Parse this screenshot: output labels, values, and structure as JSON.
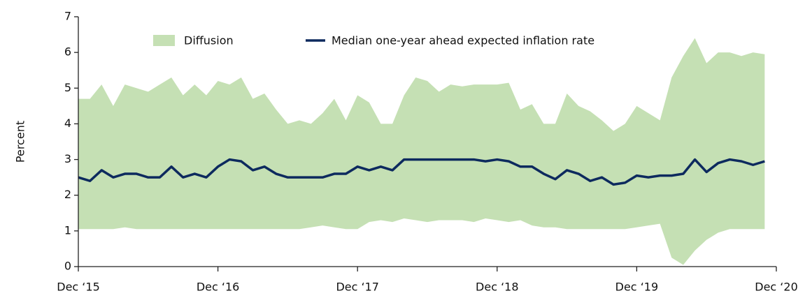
{
  "chart_data": {
    "type": "band-line",
    "ylabel": "Percent",
    "categories": [
      "Dec ‘15",
      null,
      null,
      null,
      null,
      null,
      null,
      null,
      null,
      null,
      null,
      null,
      "Dec ‘16",
      null,
      null,
      null,
      null,
      null,
      null,
      null,
      null,
      null,
      null,
      null,
      "Dec ‘17",
      null,
      null,
      null,
      null,
      null,
      null,
      null,
      null,
      null,
      null,
      null,
      "Dec ‘18",
      null,
      null,
      null,
      null,
      null,
      null,
      null,
      null,
      null,
      null,
      null,
      "Dec ‘19",
      null,
      null,
      null,
      null,
      null,
      null,
      null,
      null,
      null,
      null,
      null,
      "Dec ‘20"
    ],
    "series": [
      {
        "name": "Diffusion",
        "color": "#c5e0b4",
        "high": [
          4.7,
          4.7,
          5.1,
          4.5,
          5.1,
          5.0,
          4.9,
          5.1,
          5.3,
          4.8,
          5.1,
          4.8,
          5.2,
          5.1,
          5.3,
          4.7,
          4.85,
          4.4,
          4.0,
          4.1,
          4.0,
          4.3,
          4.7,
          4.1,
          4.8,
          4.6,
          4.0,
          4.0,
          4.8,
          5.3,
          5.2,
          4.9,
          5.1,
          5.05,
          5.1,
          5.1,
          5.1,
          5.15,
          4.4,
          4.55,
          4.0,
          4.0,
          4.85,
          4.5,
          4.35,
          4.1,
          3.8,
          4.0,
          4.5,
          4.3,
          4.1,
          5.3,
          5.9,
          6.4,
          5.7,
          6.0,
          6.0,
          5.9,
          6.0,
          5.95,
          null
        ],
        "low": [
          1.05,
          1.05,
          1.05,
          1.05,
          1.1,
          1.05,
          1.05,
          1.05,
          1.05,
          1.05,
          1.05,
          1.05,
          1.05,
          1.05,
          1.05,
          1.05,
          1.05,
          1.05,
          1.05,
          1.05,
          1.1,
          1.15,
          1.1,
          1.05,
          1.05,
          1.25,
          1.3,
          1.25,
          1.35,
          1.3,
          1.25,
          1.3,
          1.3,
          1.3,
          1.25,
          1.35,
          1.3,
          1.25,
          1.3,
          1.15,
          1.1,
          1.1,
          1.05,
          1.05,
          1.05,
          1.05,
          1.05,
          1.05,
          1.1,
          1.15,
          1.2,
          0.25,
          0.05,
          0.45,
          0.75,
          0.95,
          1.05,
          1.05,
          1.05,
          1.05,
          null
        ]
      },
      {
        "name": "Median one-year ahead expected inflation rate",
        "color": "#0d2a5e",
        "values": [
          2.5,
          2.4,
          2.7,
          2.5,
          2.6,
          2.6,
          2.5,
          2.5,
          2.8,
          2.5,
          2.6,
          2.5,
          2.8,
          3.0,
          2.95,
          2.7,
          2.8,
          2.6,
          2.5,
          2.5,
          2.5,
          2.5,
          2.6,
          2.6,
          2.8,
          2.7,
          2.8,
          2.7,
          3.0,
          3.0,
          3.0,
          3.0,
          3.0,
          3.0,
          3.0,
          2.95,
          3.0,
          2.95,
          2.8,
          2.8,
          2.6,
          2.45,
          2.7,
          2.6,
          2.4,
          2.5,
          2.3,
          2.35,
          2.55,
          2.5,
          2.55,
          2.55,
          2.6,
          3.0,
          2.65,
          2.9,
          3.0,
          2.95,
          2.85,
          2.95,
          null
        ]
      }
    ],
    "ylim": [
      0,
      7
    ],
    "yticks": [
      0,
      1,
      2,
      3,
      4,
      5,
      6,
      7
    ],
    "grid": false
  }
}
